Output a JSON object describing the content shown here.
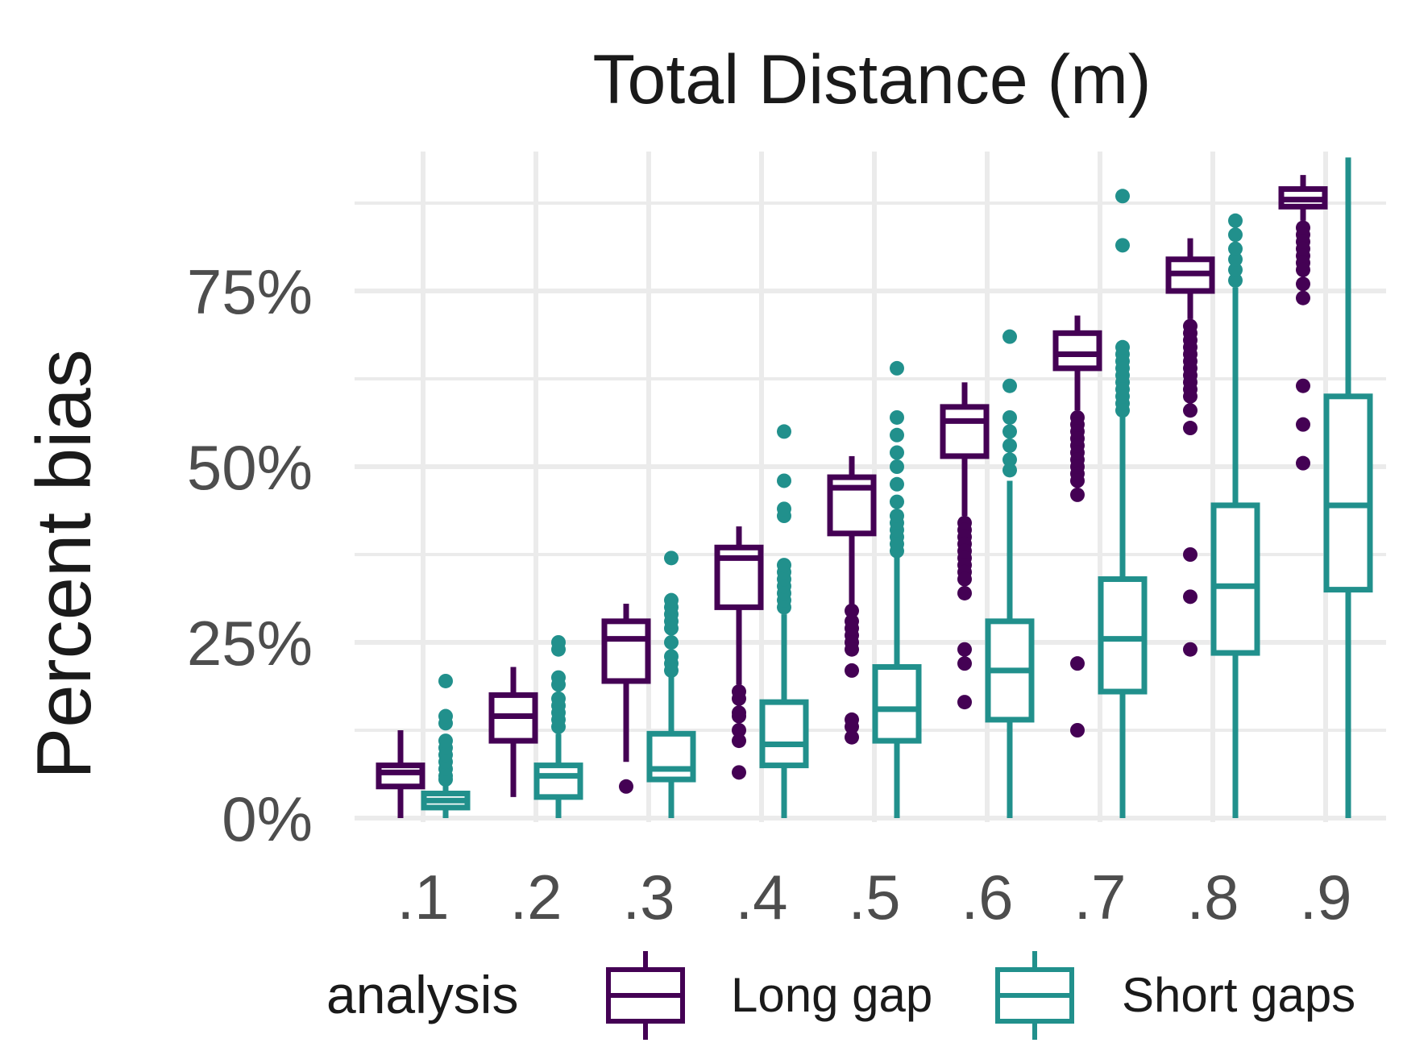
{
  "chart_data": {
    "type": "boxplot",
    "title": "Total Distance (m)",
    "xlabel": "",
    "ylabel": "Percent bias",
    "categories": [
      ".1",
      ".2",
      ".3",
      ".4",
      ".5",
      ".6",
      ".7",
      ".8",
      ".9"
    ],
    "y_ticks": [
      0,
      25,
      50,
      75
    ],
    "y_tick_labels": [
      "0%",
      "25%",
      "50%",
      "75%"
    ],
    "ylim": [
      -1,
      98
    ],
    "grid": true,
    "legend": {
      "title": "analysis",
      "position": "bottom"
    },
    "series": [
      {
        "name": "Long gap",
        "color": "#440154",
        "boxes": [
          {
            "category": ".1",
            "min": 0,
            "q1": 4.5,
            "median": 6.5,
            "q3": 7.5,
            "max": 12.5,
            "outliers": []
          },
          {
            "category": ".2",
            "min": 3,
            "q1": 11,
            "median": 14.5,
            "q3": 17.5,
            "max": 21.5,
            "outliers": []
          },
          {
            "category": ".3",
            "min": 8,
            "q1": 19.5,
            "median": 25.5,
            "q3": 28,
            "max": 30.5,
            "outliers": [
              4.5
            ]
          },
          {
            "category": ".4",
            "min": 19,
            "q1": 30,
            "median": 37,
            "q3": 38.5,
            "max": 41.5,
            "outliers": [
              18,
              17,
              15,
              14.5,
              12.5,
              11,
              6.5
            ]
          },
          {
            "category": ".5",
            "min": 30,
            "q1": 40.5,
            "median": 47,
            "q3": 48.5,
            "max": 51.5,
            "outliers": [
              29.5,
              28,
              27,
              26,
              25,
              24,
              21,
              14,
              13,
              11.5
            ]
          },
          {
            "category": ".6",
            "min": 43,
            "q1": 51.5,
            "median": 56.5,
            "q3": 58.5,
            "max": 62,
            "outliers": [
              42,
              41,
              40,
              39,
              38,
              37,
              36,
              35,
              34,
              32,
              24,
              22,
              16.5
            ]
          },
          {
            "category": ".7",
            "min": 58,
            "q1": 64,
            "median": 66,
            "q3": 69,
            "max": 71.5,
            "outliers": [
              57,
              56,
              55,
              54,
              53,
              52,
              51,
              50,
              49,
              48,
              46,
              22,
              12.5
            ]
          },
          {
            "category": ".8",
            "min": 71,
            "q1": 75,
            "median": 77.5,
            "q3": 79.5,
            "max": 82.5,
            "outliers": [
              70,
              69,
              68,
              67,
              66,
              65,
              64,
              63,
              62,
              61,
              60,
              58,
              55.5,
              37.5,
              31.5,
              24
            ]
          },
          {
            "category": ".9",
            "min": 85,
            "q1": 87,
            "median": 88,
            "q3": 89.5,
            "max": 91.5,
            "outliers": [
              84,
              83,
              82,
              81,
              80,
              79,
              78,
              76,
              74,
              61.5,
              56,
              50.5
            ]
          }
        ]
      },
      {
        "name": "Short gaps",
        "color": "#21908C",
        "boxes": [
          {
            "category": ".1",
            "min": 0,
            "q1": 1.5,
            "median": 2.5,
            "q3": 3.5,
            "max": 5,
            "outliers": [
              5.5,
              6,
              7,
              8,
              9,
              10,
              11,
              13.5,
              14.5,
              19.5
            ]
          },
          {
            "category": ".2",
            "min": 0,
            "q1": 3,
            "median": 6,
            "q3": 7.5,
            "max": 12,
            "outliers": [
              13,
              14,
              15,
              16,
              17,
              19,
              20,
              24,
              25
            ]
          },
          {
            "category": ".3",
            "min": 0,
            "q1": 5.5,
            "median": 7,
            "q3": 12,
            "max": 20.5,
            "outliers": [
              21,
              22,
              23,
              25,
              27,
              28,
              29,
              30,
              31,
              37
            ]
          },
          {
            "category": ".4",
            "min": 0,
            "q1": 7.5,
            "median": 10.5,
            "q3": 16.5,
            "max": 29,
            "outliers": [
              30,
              31,
              32,
              33,
              34,
              35,
              36,
              43,
              44,
              48,
              55
            ]
          },
          {
            "category": ".5",
            "min": 0,
            "q1": 11,
            "median": 15.5,
            "q3": 21.5,
            "max": 37.5,
            "outliers": [
              38,
              39,
              40,
              41,
              42,
              43,
              45,
              47.5,
              50,
              52,
              54.5,
              57,
              64
            ]
          },
          {
            "category": ".6",
            "min": 0,
            "q1": 14,
            "median": 21,
            "q3": 28,
            "max": 48,
            "outliers": [
              49.5,
              51,
              53,
              55,
              57,
              61.5,
              68.5
            ]
          },
          {
            "category": ".7",
            "min": 0,
            "q1": 18,
            "median": 25.5,
            "q3": 34,
            "max": 57.5,
            "outliers": [
              58,
              59,
              60,
              61,
              62,
              63,
              64,
              65,
              66,
              67,
              81.5,
              88.5
            ]
          },
          {
            "category": ".8",
            "min": 0,
            "q1": 23.5,
            "median": 33,
            "q3": 44.5,
            "max": 75.5,
            "outliers": [
              76.5,
              78,
              79.5,
              81,
              83,
              85
            ]
          },
          {
            "category": ".9",
            "min": 0,
            "q1": 32.5,
            "median": 44.5,
            "q3": 60,
            "max": 94,
            "outliers": []
          }
        ]
      }
    ]
  }
}
